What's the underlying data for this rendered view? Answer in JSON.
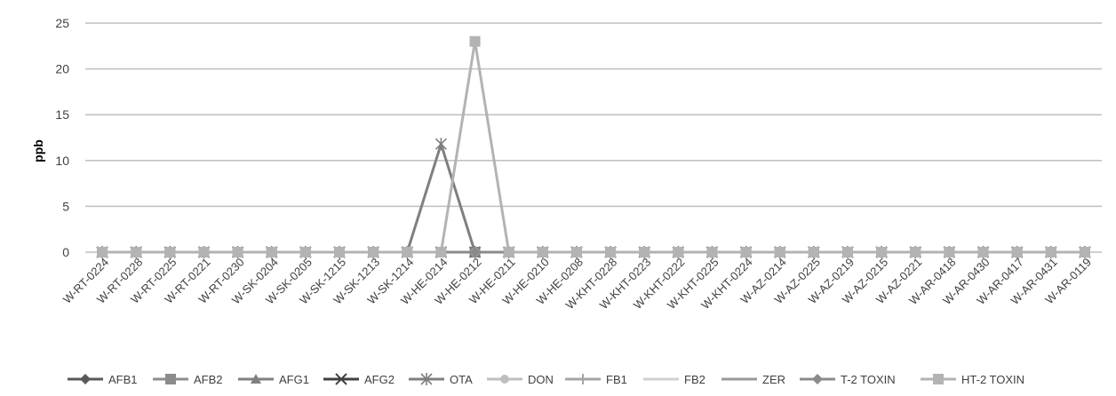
{
  "chart_data": {
    "type": "line",
    "title": "",
    "xlabel": "",
    "ylabel": "ppb",
    "ylim": [
      0,
      25
    ],
    "yticks": [
      0,
      5,
      10,
      15,
      20,
      25
    ],
    "grid": true,
    "legend_position": "bottom",
    "categories": [
      "W-RT-0224",
      "W-RT-0228",
      "W-RT-0225",
      "W-RT-0221",
      "W-RT-0230",
      "W-SK-0204",
      "W-SK-0205",
      "W-SK-1215",
      "W-SK-1213",
      "W-SK-1214",
      "W-HE-0214",
      "W-HE-0212",
      "W-HE-0211",
      "W-HE-0210",
      "W-HE-0208",
      "W-KHT-0228",
      "W-KHT-0223",
      "W-KHT-0222",
      "W-KHT-0225",
      "W-KHT-0224",
      "W-AZ-0214",
      "W-AZ-0225",
      "W-AZ-0219",
      "W-AZ-0215",
      "W-AZ-0221",
      "W-AR-0418",
      "W-AR-0430",
      "W-AR-0417",
      "W-AR-0431",
      "W-AR-0119"
    ],
    "series": [
      {
        "name": "AFB1",
        "color": "#595959",
        "marker": "diamond",
        "values": [
          0,
          0,
          0,
          0,
          0,
          0,
          0,
          0,
          0,
          0,
          0,
          0,
          0,
          0,
          0,
          0,
          0,
          0,
          0,
          0,
          0,
          0,
          0,
          0,
          0,
          0,
          0,
          0,
          0,
          0
        ]
      },
      {
        "name": "AFB2",
        "color": "#8c8c8c",
        "marker": "square",
        "values": [
          0,
          0,
          0,
          0,
          0,
          0,
          0,
          0,
          0,
          0,
          0,
          0,
          0,
          0,
          0,
          0,
          0,
          0,
          0,
          0,
          0,
          0,
          0,
          0,
          0,
          0,
          0,
          0,
          0,
          0
        ]
      },
      {
        "name": "AFG1",
        "color": "#808080",
        "marker": "triangle",
        "values": [
          0,
          0,
          0,
          0,
          0,
          0,
          0,
          0,
          0,
          0,
          0,
          0,
          0,
          0,
          0,
          0,
          0,
          0,
          0,
          0,
          0,
          0,
          0,
          0,
          0,
          0,
          0,
          0,
          0,
          0
        ]
      },
      {
        "name": "AFG2",
        "color": "#404040",
        "marker": "x",
        "values": [
          0,
          0,
          0,
          0,
          0,
          0,
          0,
          0,
          0,
          0,
          0,
          0,
          0,
          0,
          0,
          0,
          0,
          0,
          0,
          0,
          0,
          0,
          0,
          0,
          0,
          0,
          0,
          0,
          0,
          0
        ]
      },
      {
        "name": "OTA",
        "color": "#7f7f7f",
        "marker": "star",
        "values": [
          0,
          0,
          0,
          0,
          0,
          0,
          0,
          0,
          0,
          0,
          11.8,
          0,
          0,
          0,
          0,
          0,
          0,
          0,
          0,
          0,
          0,
          0,
          0,
          0,
          0,
          0,
          0,
          0,
          0,
          0
        ]
      },
      {
        "name": "DON",
        "color": "#bfbfbf",
        "marker": "circle",
        "values": [
          0,
          0,
          0,
          0,
          0,
          0,
          0,
          0,
          0,
          0,
          0,
          0,
          0,
          0,
          0,
          0,
          0,
          0,
          0,
          0,
          0,
          0,
          0,
          0,
          0,
          0,
          0,
          0,
          0,
          0
        ]
      },
      {
        "name": "FB1",
        "color": "#a6a6a6",
        "marker": "plus",
        "values": [
          0,
          0,
          0,
          0,
          0,
          0,
          0,
          0,
          0,
          0,
          0,
          0,
          0,
          0,
          0,
          0,
          0,
          0,
          0,
          0,
          0,
          0,
          0,
          0,
          0,
          0,
          0,
          0,
          0,
          0
        ]
      },
      {
        "name": "FB2",
        "color": "#d0d0d0",
        "marker": "none",
        "values": [
          0,
          0,
          0,
          0,
          0,
          0,
          0,
          0,
          0,
          0,
          0,
          0,
          0,
          0,
          0,
          0,
          0,
          0,
          0,
          0,
          0,
          0,
          0,
          0,
          0,
          0,
          0,
          0,
          0,
          0
        ]
      },
      {
        "name": "ZER",
        "color": "#9a9a9a",
        "marker": "none",
        "values": [
          0,
          0,
          0,
          0,
          0,
          0,
          0,
          0,
          0,
          0,
          0,
          0,
          0,
          0,
          0,
          0,
          0,
          0,
          0,
          0,
          0,
          0,
          0,
          0,
          0,
          0,
          0,
          0,
          0,
          0
        ]
      },
      {
        "name": "T-2 TOXIN",
        "color": "#8a8a8a",
        "marker": "diamond",
        "values": [
          0,
          0,
          0,
          0,
          0,
          0,
          0,
          0,
          0,
          0,
          0,
          0,
          0,
          0,
          0,
          0,
          0,
          0,
          0,
          0,
          0,
          0,
          0,
          0,
          0,
          0,
          0,
          0,
          0,
          0
        ]
      },
      {
        "name": "HT-2 TOXIN",
        "color": "#b3b3b3",
        "marker": "square",
        "values": [
          0,
          0,
          0,
          0,
          0,
          0,
          0,
          0,
          0,
          0,
          0,
          23,
          0,
          0,
          0,
          0,
          0,
          0,
          0,
          0,
          0,
          0,
          0,
          0,
          0,
          0,
          0,
          0,
          0,
          0
        ]
      }
    ]
  }
}
